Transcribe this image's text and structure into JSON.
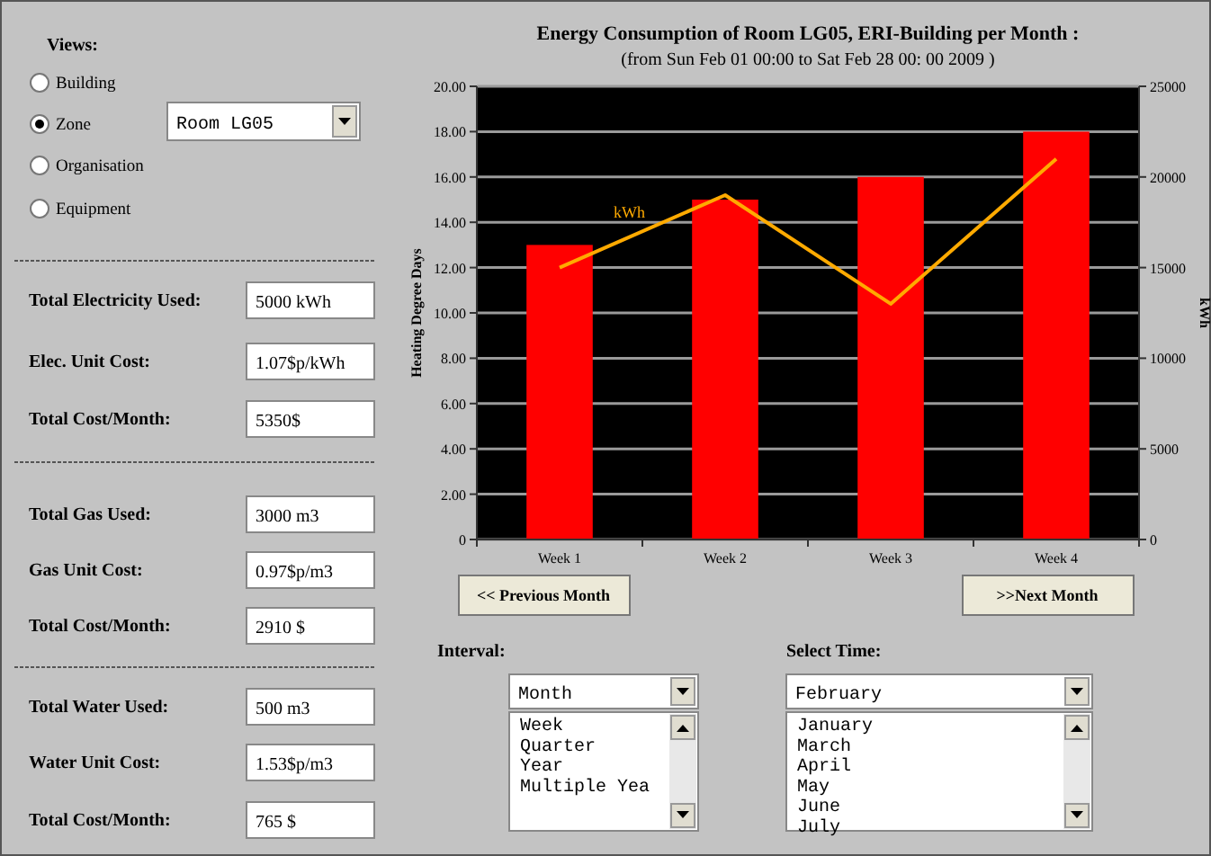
{
  "chart_data": [
    {
      "type": "bar",
      "title": "Energy Consumption of Room LG05, ERI-Building per Month :",
      "subtitle": "(from Sun Feb 01 00:00 to Sat Feb 28 00: 00 2009 )",
      "ylabel": "Heating Degree Days",
      "y2label": "kWh",
      "categories": [
        "Week 1",
        "Week 2",
        "Week 3",
        "Week 4"
      ],
      "series": [
        {
          "type": "bar",
          "color": "#ff0000",
          "values": [
            13,
            15,
            16,
            18
          ]
        },
        {
          "type": "line",
          "name": "kWh",
          "axis": "y2",
          "color": "#ffaa00",
          "values": [
            15000,
            19000,
            13000,
            21000
          ]
        }
      ],
      "ylim": [
        0,
        20
      ],
      "yticks": [
        {
          "value": 0,
          "label": "0"
        },
        {
          "value": 2,
          "label": "2.00"
        },
        {
          "value": 4,
          "label": "4.00"
        },
        {
          "value": 6,
          "label": "6.00"
        },
        {
          "value": 8,
          "label": "8.00"
        },
        {
          "value": 10,
          "label": "10.00"
        },
        {
          "value": 12,
          "label": "12.00"
        },
        {
          "value": 14,
          "label": "14.00"
        },
        {
          "value": 16,
          "label": "16.00"
        },
        {
          "value": 18,
          "label": "18.00"
        },
        {
          "value": 20,
          "label": "20.00"
        }
      ],
      "y2lim": [
        0,
        25000
      ],
      "y2ticks": [
        0,
        5000,
        10000,
        15000,
        20000,
        25000
      ],
      "grid": "y",
      "marker": "none"
    },
    {
      "type": "other",
      "annotations": [
        "Views:",
        "Building",
        "Zone",
        "Organisation",
        "Equipment",
        "Room LG05",
        "Total Electricity Used:",
        "5000 kWh",
        "Elec. Unit Cost:",
        "1.07$p/kWh",
        "Total Cost/Month:",
        "5350$",
        "Total Gas Used:",
        "3000 m3",
        "Gas Unit Cost:",
        "0.97$p/m3",
        "Total Cost/Month:",
        "2910 $",
        "Total Water Used:",
        "500 m3",
        "Water Unit Cost:",
        "1.53$p/m3",
        "Total Cost/Month:",
        "765 $",
        "<< Previous Month",
        ">>Next Month",
        "Interval:",
        "Month",
        "Week",
        "Quarter",
        "Year",
        "Multiple Yea",
        "Select Time:",
        "February",
        "January",
        "March",
        "April",
        "May",
        "June",
        "July"
      ]
    }
  ]
}
